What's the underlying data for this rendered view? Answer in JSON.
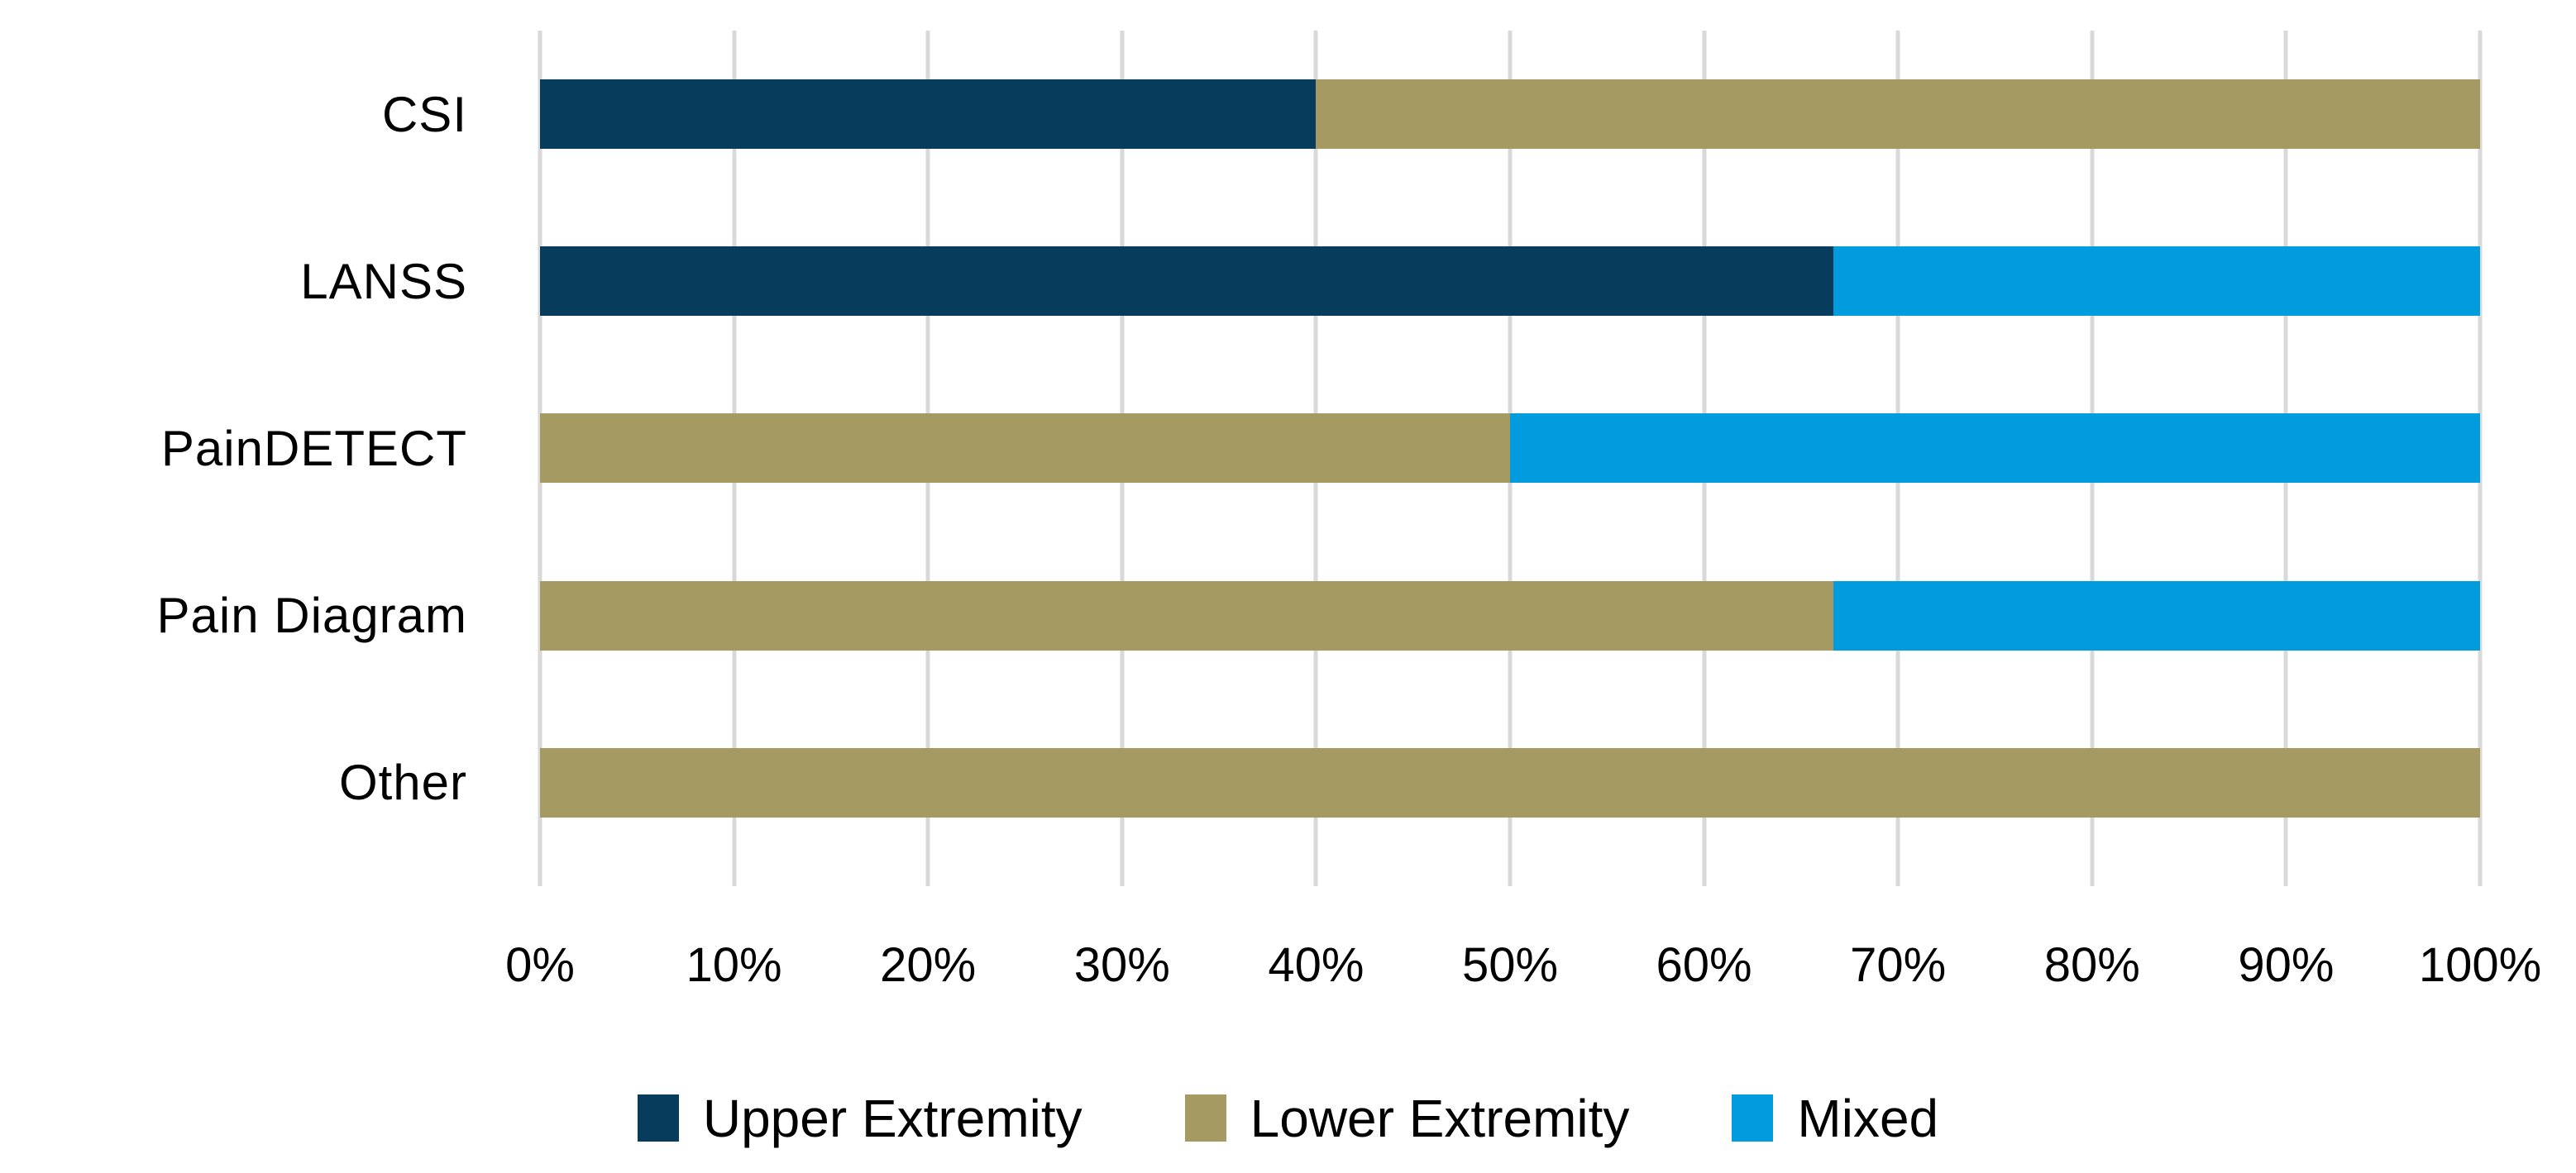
{
  "chart_data": {
    "type": "bar",
    "variant": "horizontal-stacked",
    "title": "",
    "xlabel": "",
    "ylabel": "",
    "categories": [
      "CSI",
      "LANSS",
      "PainDETECT",
      "Pain Diagram",
      "Other"
    ],
    "series": [
      {
        "name": "Upper Extremity",
        "color": "#073C5C",
        "values": [
          40,
          66.67,
          0,
          0,
          0
        ]
      },
      {
        "name": "Lower Extremity",
        "color": "#A69A63",
        "values": [
          60,
          0,
          50,
          66.67,
          100
        ]
      },
      {
        "name": "Mixed",
        "color": "#009CDE",
        "values": [
          0,
          33.33,
          50,
          33.33,
          0
        ]
      }
    ],
    "x_axis": {
      "range": [
        0,
        100
      ],
      "tick_values": [
        0,
        10,
        20,
        30,
        40,
        50,
        60,
        70,
        80,
        90,
        100
      ],
      "tick_labels": [
        "0%",
        "10%",
        "20%",
        "30%",
        "40%",
        "50%",
        "60%",
        "70%",
        "80%",
        "90%",
        "100%"
      ]
    },
    "grid": "vertical-major",
    "gridline_color": "#D9D9D9",
    "text_color": "#000000",
    "background_color": "#FFFFFF",
    "legend_position": "bottom"
  }
}
